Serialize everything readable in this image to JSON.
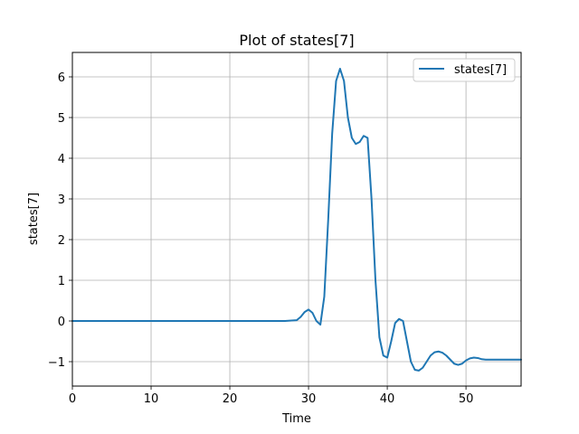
{
  "chart_data": {
    "type": "line",
    "title": "Plot of states[7]",
    "xlabel": "Time",
    "ylabel": "states[7]",
    "xlim": [
      0,
      57
    ],
    "ylim": [
      -1.6,
      6.6
    ],
    "xticks": [
      0,
      10,
      20,
      30,
      40,
      50
    ],
    "yticks": [
      -1,
      0,
      1,
      2,
      3,
      4,
      5,
      6
    ],
    "grid": true,
    "legend_position": "top-right",
    "series": [
      {
        "name": "states[7]",
        "color": "#1f77b4",
        "x": [
          0,
          10,
          20,
          27,
          28.5,
          29,
          29.5,
          30,
          30.5,
          31,
          31.5,
          32,
          32.5,
          33,
          33.5,
          34,
          34.5,
          35,
          35.5,
          36,
          36.5,
          37,
          37.5,
          38,
          38.5,
          39,
          39.5,
          40,
          40.5,
          41,
          41.5,
          42,
          42.5,
          43,
          43.5,
          44,
          44.5,
          45,
          45.5,
          46,
          46.5,
          47,
          47.5,
          48,
          48.5,
          49,
          49.5,
          50,
          50.5,
          51,
          51.5,
          52,
          52.5,
          53,
          53.5,
          54,
          55,
          56,
          57
        ],
        "y": [
          0,
          0,
          0,
          0,
          0.02,
          0.1,
          0.22,
          0.28,
          0.2,
          0.0,
          -0.09,
          0.6,
          2.5,
          4.6,
          5.9,
          6.2,
          5.9,
          5.0,
          4.5,
          4.35,
          4.4,
          4.55,
          4.5,
          3.0,
          1.0,
          -0.4,
          -0.85,
          -0.9,
          -0.5,
          -0.05,
          0.05,
          0.0,
          -0.5,
          -1.0,
          -1.2,
          -1.22,
          -1.15,
          -1.0,
          -0.85,
          -0.77,
          -0.75,
          -0.78,
          -0.85,
          -0.95,
          -1.05,
          -1.08,
          -1.05,
          -0.97,
          -0.92,
          -0.9,
          -0.91,
          -0.94,
          -0.95,
          -0.95,
          -0.95,
          -0.95,
          -0.95,
          -0.95,
          -0.95
        ]
      }
    ]
  }
}
